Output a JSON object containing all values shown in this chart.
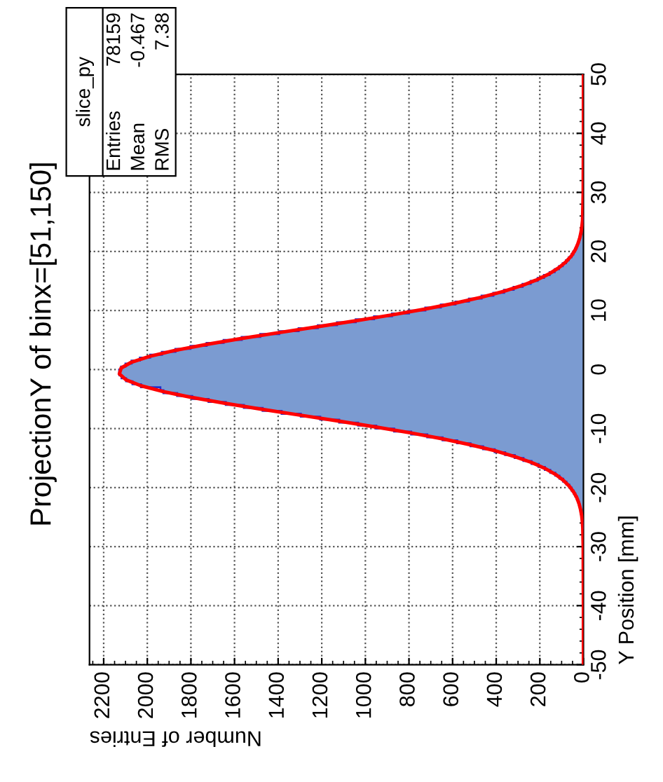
{
  "chart_data": {
    "type": "histogram",
    "orientation": "horizontal",
    "title": "ProjectionY of binx=[51,150]",
    "xlabel": "Number of Entries",
    "ylabel": "Y Position [mm]",
    "annotations": [
      "slice_py",
      "Entries",
      "78159",
      "Mean",
      "-0.467",
      "RMS",
      "7.38"
    ],
    "bins": [
      -27,
      -26.5,
      -26,
      -25.5,
      -25,
      -24.5,
      -24,
      -23.5,
      -23,
      -22.5,
      -22,
      -21.5,
      -21,
      -20.5,
      -20,
      -19.5,
      -19,
      -18.5,
      -18,
      -17.5,
      -17,
      -16.5,
      -16,
      -15.5,
      -15,
      -14.5,
      -14,
      -13.5,
      -13,
      -12.5,
      -12,
      -11.5,
      -11,
      -10.5,
      -10,
      -9.5,
      -9,
      -8.5,
      -8,
      -7.5,
      -7,
      -6.5,
      -6,
      -5.5,
      -5,
      -4.5,
      -4,
      -3.5,
      -3,
      -2.5,
      -2,
      -1.5,
      -1,
      -0.5,
      0,
      0.5,
      1,
      1.5,
      2,
      2.5,
      3,
      3.5,
      4,
      4.5,
      5,
      5.5,
      6,
      6.5,
      7,
      7.5,
      8,
      8.5,
      9,
      9.5,
      10,
      10.5,
      11,
      11.5,
      12,
      12.5,
      13,
      13.5,
      14,
      14.5,
      15,
      15.5,
      16,
      16.5,
      17,
      17.5,
      18,
      18.5,
      19,
      19.5,
      20,
      20.5,
      21,
      21.5,
      22,
      22.5,
      23,
      23.5,
      24,
      24.5,
      25,
      25.5,
      26
    ],
    "series": [
      {
        "color": "#7b9bd1",
        "values": [
          3,
          4,
          5,
          7,
          8,
          11,
          13,
          16,
          20,
          25,
          30,
          37,
          45,
          54,
          65,
          78,
          93,
          110,
          129,
          152,
          177,
          206,
          238,
          275,
          315,
          359,
          407,
          460,
          518,
          579,
          646,
          716,
          790,
          868,
          950,
          1033,
          1120,
          1207,
          1296,
          1384,
          1471,
          1557,
          1640,
          1719,
          1794,
          1863,
          1926,
          1940,
          2029,
          2068,
          2097,
          2118,
          2128,
          2129,
          2120,
          2100,
          2072,
          2034,
          1987,
          1933,
          1871,
          1802,
          1728,
          1650,
          1567,
          1482,
          1395,
          1306,
          1218,
          1130,
          1044,
          960,
          878,
          800,
          725,
          654,
          587,
          525,
          467,
          413,
          364,
          320,
          279,
          242,
          210,
          181,
          155,
          132,
          112,
          95,
          80,
          67,
          55,
          46,
          38,
          31,
          26,
          21,
          17,
          14,
          11,
          9,
          7,
          5,
          4,
          3
        ]
      },
      {
        "type": "line",
        "color": "#ff0000",
        "x": [
          -50,
          -40,
          -30,
          -26.75,
          -25.75,
          -24.75,
          -23.75,
          -22.75,
          -21.75,
          -20.75,
          -19.75,
          -18.75,
          -17.75,
          -16.75,
          -15.75,
          -14.75,
          -13.75,
          -12.75,
          -11.75,
          -10.75,
          -9.75,
          -8.75,
          -7.75,
          -6.75,
          -5.75,
          -4.75,
          -3.75,
          -2.75,
          -1.75,
          -0.75,
          0.25,
          1.25,
          2.25,
          3.25,
          4.25,
          5.25,
          6.25,
          7.25,
          8.25,
          9.25,
          10.25,
          11.25,
          12.25,
          13.25,
          14.25,
          15.25,
          16.25,
          17.25,
          18.25,
          19.25,
          20.25,
          21.25,
          22.25,
          23.25,
          24.25,
          25.25,
          30,
          40,
          50
        ],
        "values": [
          0,
          0,
          1,
          3,
          5,
          8,
          13,
          20,
          30,
          45,
          65,
          93,
          129,
          177,
          238,
          315,
          407,
          518,
          646,
          790,
          950,
          1120,
          1296,
          1471,
          1640,
          1794,
          1926,
          2029,
          2097,
          2128,
          2120,
          2072,
          1987,
          1871,
          1728,
          1567,
          1395,
          1218,
          1044,
          878,
          725,
          587,
          467,
          364,
          279,
          210,
          155,
          112,
          80,
          55,
          38,
          26,
          17,
          11,
          7,
          4,
          1,
          0,
          0
        ]
      }
    ],
    "xlim": [
      2265,
      0
    ],
    "xticks": [
      0,
      200,
      400,
      600,
      800,
      1000,
      1200,
      1400,
      1600,
      1800,
      2000,
      2200
    ],
    "ylim": [
      -50,
      50
    ],
    "yticks": [
      -50,
      -40,
      -30,
      -20,
      -10,
      0,
      10,
      20,
      30,
      40,
      50
    ],
    "grid": true
  }
}
